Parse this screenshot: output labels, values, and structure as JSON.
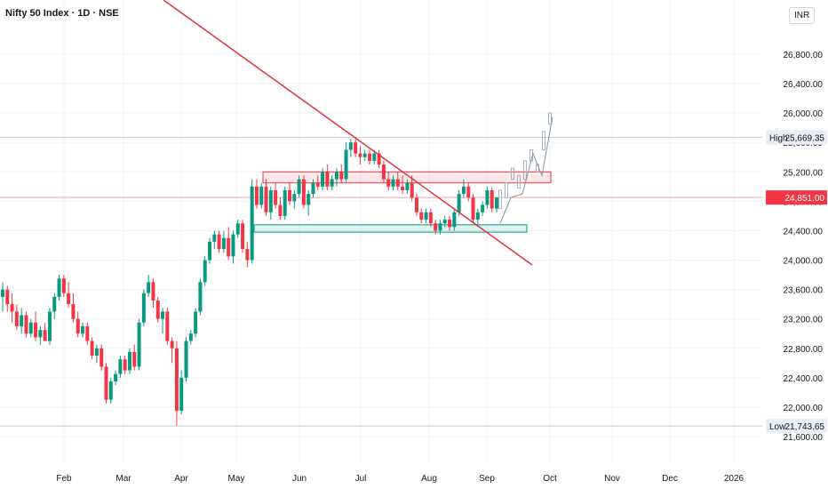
{
  "header": {
    "title": "Nifty 50 Index · 1D · NSE",
    "currency": "INR"
  },
  "chart_data": {
    "type": "candlestick",
    "title": "Nifty 50 Index · 1D · NSE",
    "y_axis_labels": [
      "26,800.00",
      "26,400.00",
      "26,000.00",
      "25,600.00",
      "25,200.00",
      "24,800.00",
      "24,400.00",
      "24,000.00",
      "23,600.00",
      "23,200.00",
      "22,800.00",
      "22,400.00",
      "22,000.00",
      "21,600.00"
    ],
    "y_axis_values": [
      26800,
      26400,
      26000,
      25600,
      25200,
      24800,
      24400,
      24000,
      23600,
      23200,
      22800,
      22400,
      22000,
      21600
    ],
    "x_axis_labels": [
      "Feb",
      "Mar",
      "Apr",
      "May",
      "Jun",
      "Jul",
      "Aug",
      "Sep",
      "Oct",
      "Nov",
      "Dec",
      "2026"
    ],
    "ylim": [
      21400,
      27000
    ],
    "high": {
      "label": "High",
      "value_text": "25,669.35",
      "value": 25669.35
    },
    "low": {
      "label": "Low",
      "value_text": "21,743.65",
      "value": 21743.65
    },
    "last_price": {
      "value_text": "24,851.00",
      "value": 24851,
      "color": "#f23645"
    },
    "colors": {
      "up": "#089981",
      "down": "#f23645",
      "trendline": "#e0323f",
      "grid": "#f0f3fa"
    },
    "candles": [
      [
        23500,
        23700,
        23300,
        23600
      ],
      [
        23600,
        23650,
        23300,
        23400
      ],
      [
        23400,
        23550,
        23150,
        23300
      ],
      [
        23300,
        23400,
        23050,
        23100
      ],
      [
        23100,
        23350,
        23000,
        23250
      ],
      [
        23250,
        23300,
        22950,
        23000
      ],
      [
        23000,
        23200,
        22950,
        23150
      ],
      [
        23150,
        23300,
        22900,
        22950
      ],
      [
        22950,
        23100,
        22850,
        23050
      ],
      [
        23050,
        23150,
        22900,
        22900
      ],
      [
        22900,
        23350,
        22850,
        23300
      ],
      [
        23300,
        23550,
        23200,
        23500
      ],
      [
        23500,
        23800,
        23450,
        23750
      ],
      [
        23750,
        23800,
        23500,
        23550
      ],
      [
        23550,
        23700,
        23350,
        23400
      ],
      [
        23400,
        23550,
        23150,
        23200
      ],
      [
        23200,
        23300,
        22950,
        23000
      ],
      [
        23000,
        23150,
        22950,
        23100
      ],
      [
        23100,
        23150,
        22850,
        22900
      ],
      [
        22900,
        22950,
        22650,
        22700
      ],
      [
        22700,
        22850,
        22600,
        22800
      ],
      [
        22800,
        22850,
        22500,
        22550
      ],
      [
        22550,
        22600,
        22050,
        22100
      ],
      [
        22100,
        22400,
        22050,
        22350
      ],
      [
        22350,
        22500,
        22300,
        22450
      ],
      [
        22450,
        22700,
        22400,
        22650
      ],
      [
        22650,
        22700,
        22450,
        22500
      ],
      [
        22500,
        22800,
        22450,
        22750
      ],
      [
        22750,
        22850,
        22500,
        22550
      ],
      [
        22550,
        23200,
        22500,
        23150
      ],
      [
        23150,
        23600,
        23100,
        23550
      ],
      [
        23550,
        23800,
        23500,
        23700
      ],
      [
        23700,
        23750,
        23350,
        23450
      ],
      [
        23450,
        23500,
        23150,
        23200
      ],
      [
        23200,
        23350,
        23000,
        23300
      ],
      [
        23300,
        23350,
        22850,
        22900
      ],
      [
        22900,
        22950,
        22600,
        22800
      ],
      [
        22800,
        22900,
        21750,
        21950
      ],
      [
        21950,
        22500,
        21900,
        22400
      ],
      [
        22400,
        22950,
        22350,
        22900
      ],
      [
        22900,
        23050,
        22850,
        23000
      ],
      [
        23000,
        23350,
        22950,
        23300
      ],
      [
        23300,
        23750,
        23250,
        23700
      ],
      [
        23700,
        24050,
        23650,
        24000
      ],
      [
        24000,
        24300,
        23950,
        24250
      ],
      [
        24250,
        24400,
        24150,
        24350
      ],
      [
        24350,
        24400,
        24100,
        24150
      ],
      [
        24150,
        24400,
        24100,
        24300
      ],
      [
        24300,
        24450,
        24000,
        24050
      ],
      [
        24050,
        24400,
        23950,
        24350
      ],
      [
        24350,
        24550,
        24300,
        24500
      ],
      [
        24500,
        24550,
        24100,
        24150
      ],
      [
        24150,
        24250,
        23900,
        24000
      ],
      [
        24000,
        25100,
        23950,
        25000
      ],
      [
        25000,
        25100,
        24700,
        24750
      ],
      [
        24750,
        25050,
        24700,
        25000
      ],
      [
        25000,
        25100,
        24600,
        24650
      ],
      [
        24650,
        25000,
        24550,
        24950
      ],
      [
        24950,
        25050,
        24700,
        24750
      ],
      [
        24750,
        24850,
        24550,
        24600
      ],
      [
        24600,
        25000,
        24550,
        24950
      ],
      [
        24950,
        25050,
        24750,
        24800
      ],
      [
        24800,
        24950,
        24700,
        24900
      ],
      [
        24900,
        25150,
        24850,
        25100
      ],
      [
        25100,
        25150,
        24700,
        24750
      ],
      [
        24750,
        24950,
        24600,
        24900
      ],
      [
        24900,
        25100,
        24850,
        25050
      ],
      [
        25050,
        25150,
        24950,
        25000
      ],
      [
        25000,
        25250,
        24950,
        25200
      ],
      [
        25200,
        25300,
        24950,
        25000
      ],
      [
        25000,
        25150,
        24950,
        25100
      ],
      [
        25100,
        25250,
        25000,
        25200
      ],
      [
        25200,
        25300,
        25050,
        25100
      ],
      [
        25100,
        25600,
        25050,
        25500
      ],
      [
        25500,
        25650,
        25400,
        25600
      ],
      [
        25600,
        25650,
        25400,
        25450
      ],
      [
        25450,
        25550,
        25300,
        25400
      ],
      [
        25400,
        25500,
        25350,
        25450
      ],
      [
        25450,
        25500,
        25300,
        25350
      ],
      [
        25350,
        25500,
        25300,
        25450
      ],
      [
        25450,
        25500,
        25250,
        25300
      ],
      [
        25300,
        25350,
        25050,
        25100
      ],
      [
        25100,
        25200,
        24950,
        25000
      ],
      [
        25000,
        25150,
        24950,
        25100
      ],
      [
        25100,
        25200,
        24950,
        25000
      ],
      [
        25000,
        25150,
        24900,
        24950
      ],
      [
        24950,
        25100,
        24900,
        25050
      ],
      [
        25050,
        25150,
        24800,
        24850
      ],
      [
        24850,
        24900,
        24600,
        24650
      ],
      [
        24650,
        24700,
        24500,
        24550
      ],
      [
        24550,
        24700,
        24500,
        24650
      ],
      [
        24650,
        24700,
        24450,
        24500
      ],
      [
        24500,
        24550,
        24350,
        24400
      ],
      [
        24400,
        24550,
        24350,
        24500
      ],
      [
        24500,
        24600,
        24450,
        24550
      ],
      [
        24550,
        24600,
        24400,
        24450
      ],
      [
        24450,
        24700,
        24400,
        24650
      ],
      [
        24650,
        24950,
        24600,
        24900
      ],
      [
        24900,
        25100,
        24850,
        25000
      ],
      [
        25000,
        25050,
        24800,
        24850
      ],
      [
        24850,
        24900,
        24500,
        24550
      ],
      [
        24550,
        24700,
        24450,
        24650
      ],
      [
        24650,
        24800,
        24600,
        24750
      ],
      [
        24750,
        25000,
        24700,
        24950
      ],
      [
        24950,
        24980,
        24650,
        24700
      ],
      [
        24700,
        24851,
        24650,
        24851
      ]
    ],
    "projection": [
      [
        24700,
        24950
      ],
      [
        24850,
        25050
      ],
      [
        25100,
        25250
      ],
      [
        24980,
        25150
      ],
      [
        25100,
        25350
      ],
      [
        25350,
        25500
      ],
      [
        25200,
        25300
      ],
      [
        25500,
        25750
      ],
      [
        25850,
        26000
      ]
    ],
    "resistance_zone": [
      25050,
      25200
    ],
    "support_zone": [
      24380,
      24480
    ]
  }
}
